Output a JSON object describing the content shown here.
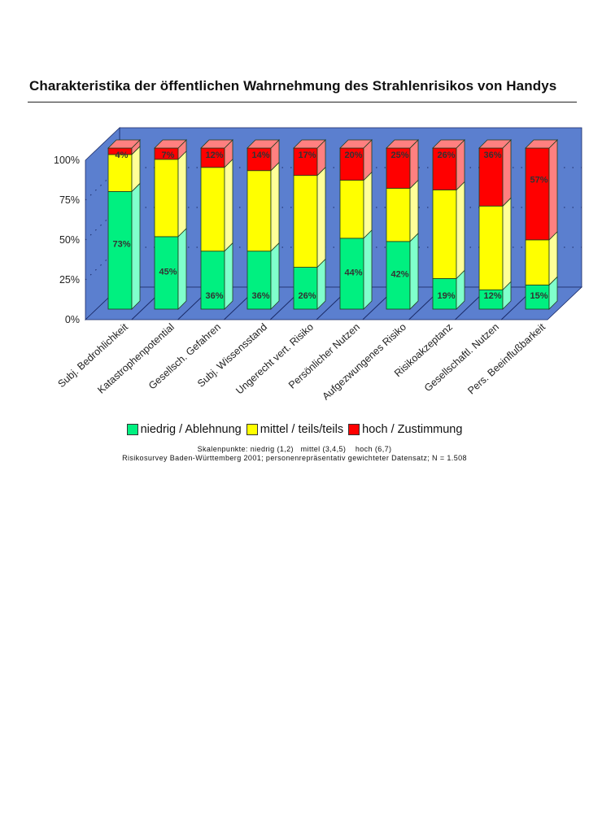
{
  "chart_data": {
    "type": "bar",
    "stacked": true,
    "three_d": true,
    "title": "Charakteristika der öffentlichen Wahrnehmung des Strahlenrisikos von Handys",
    "xlabel": "",
    "ylabel": "",
    "ylim": [
      0,
      100
    ],
    "yticks": [
      "0%",
      "25%",
      "50%",
      "75%",
      "100%"
    ],
    "ytick_values": [
      0,
      25,
      50,
      75,
      100
    ],
    "grid": true,
    "legend_position": "bottom",
    "categories": [
      "Subj. Bedrohlichkeit",
      "Katastrophenpotential",
      "Gesellsch. Gefahren",
      "Subj. Wissensstand",
      "Ungerecht vert. Risiko",
      "Persönlicher Nutzen",
      "Aufgezwungenes Risiko",
      "Risikoakzeptanz",
      "Gesellschaftl. Nutzen",
      "Pers. Beeinflußbarkeit"
    ],
    "series": [
      {
        "name": "niedrig / Ablehnung",
        "color": "#00f080",
        "side_color": "#80ffcc",
        "values": [
          73,
          45,
          36,
          36,
          26,
          44,
          42,
          19,
          12,
          15
        ],
        "labels_shown": true
      },
      {
        "name": "mittel / teils/teils",
        "color": "#ffff00",
        "side_color": "#ffff99",
        "values": [
          23,
          48,
          52,
          50,
          57,
          36,
          33,
          55,
          52,
          28
        ],
        "labels_shown": false
      },
      {
        "name": "hoch / Zustimmung",
        "color": "#ff0000",
        "side_color": "#ff8080",
        "values": [
          4,
          7,
          12,
          14,
          17,
          20,
          25,
          26,
          36,
          57
        ],
        "labels_shown": true
      }
    ],
    "wall_color": "#5b7fcf",
    "notes": [
      "Skalenpunkte: niedrig (1,2)   mittel (3,4,5)    hoch (6,7)",
      "Risikosurvey Baden-Württemberg 2001; personenrepräsentativ gewichteter Datensatz; N = 1.508"
    ]
  }
}
